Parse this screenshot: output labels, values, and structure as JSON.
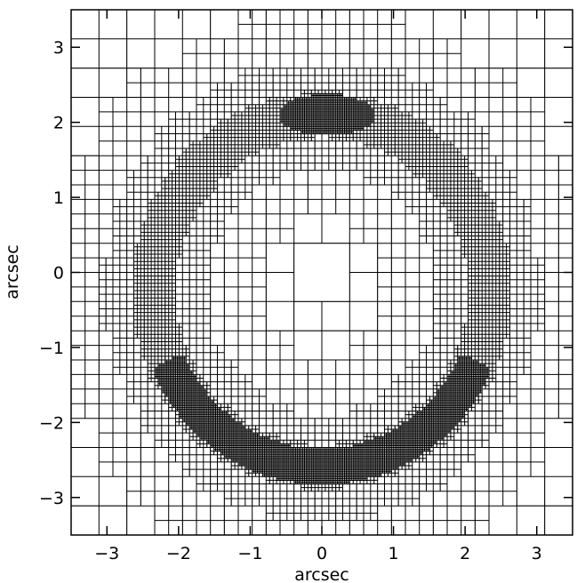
{
  "chart_data": {
    "type": "mesh",
    "xlabel": "arcsec",
    "ylabel": "arcsec",
    "xlim": [
      -3.5,
      3.5
    ],
    "ylim": [
      -3.5,
      3.5
    ],
    "xticks": [
      {
        "value": -3,
        "label": "−3"
      },
      {
        "value": -2,
        "label": "−2"
      },
      {
        "value": -1,
        "label": "−1"
      },
      0,
      1,
      2,
      3
    ],
    "yticks": [
      {
        "value": -3,
        "label": "−3"
      },
      {
        "value": -2,
        "label": "−2"
      },
      {
        "value": -1,
        "label": "−1"
      },
      0,
      1,
      2,
      3
    ],
    "color": "#000000"
  }
}
